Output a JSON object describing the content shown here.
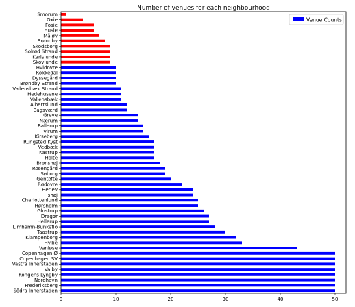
{
  "chart_data": {
    "type": "bar",
    "orientation": "horizontal",
    "title": "Number of venues for each neighbourhood",
    "xlabel": "",
    "ylabel": "",
    "xlim": [
      0,
      52
    ],
    "xticks": [
      0,
      10,
      20,
      30,
      40,
      50
    ],
    "grid": false,
    "legend": {
      "position": "top-right",
      "entries": [
        "Venue Counts"
      ]
    },
    "colors": {
      "highlight": "#ff0000",
      "default": "#0000ff"
    },
    "categories": [
      "Smorum",
      "Oxie",
      "Fosie",
      "Husie",
      "Måløv",
      "Brøndby",
      "Skodsborg",
      "Solrød Strand",
      "Karlslunde",
      "Skovlunde",
      "Hvidovre",
      "Kokkedal",
      "Dyssegård",
      "Brøndby Strand",
      "Vallensbæk Strand",
      "Hedehusene",
      "Vallensbæk",
      "Albertslund",
      "Bagsværd",
      "Greve",
      "Nærum",
      "Ballerup",
      "Virum",
      "Kirseberg",
      "Rungsted Kyst",
      "Vedbæk",
      "Kastrup",
      "Holte",
      "Brønshøj",
      "Rosengård",
      "Søborg",
      "Gentofte",
      "Rødovre",
      "Herlev",
      "Ishøj",
      "Charlottenlund",
      "Hørsholm",
      "Glostrup",
      "Dragør",
      "Hellerup",
      "Limhamn-Bunkeflo",
      "Taastrup",
      "Klampenborg",
      "Hyllie",
      "Vanløse",
      "Copenhagen Ø",
      "Copenhagen SV",
      "Västra Innerstaden",
      "Valby",
      "Kongens Lyngby",
      "Nordhavn",
      "Frederiksberg",
      "Södra Innerstaden"
    ],
    "values": [
      1,
      4,
      6,
      6,
      7,
      8,
      9,
      9,
      9,
      9,
      10,
      10,
      10,
      10,
      11,
      11,
      11,
      12,
      12,
      14,
      14,
      15,
      15,
      16,
      17,
      17,
      17,
      17,
      18,
      19,
      19,
      20,
      22,
      24,
      24,
      25,
      25,
      26,
      27,
      27,
      28,
      30,
      32,
      33,
      43,
      50,
      50,
      50,
      50,
      50,
      50,
      50,
      50
    ],
    "highlighted_count": 10
  }
}
